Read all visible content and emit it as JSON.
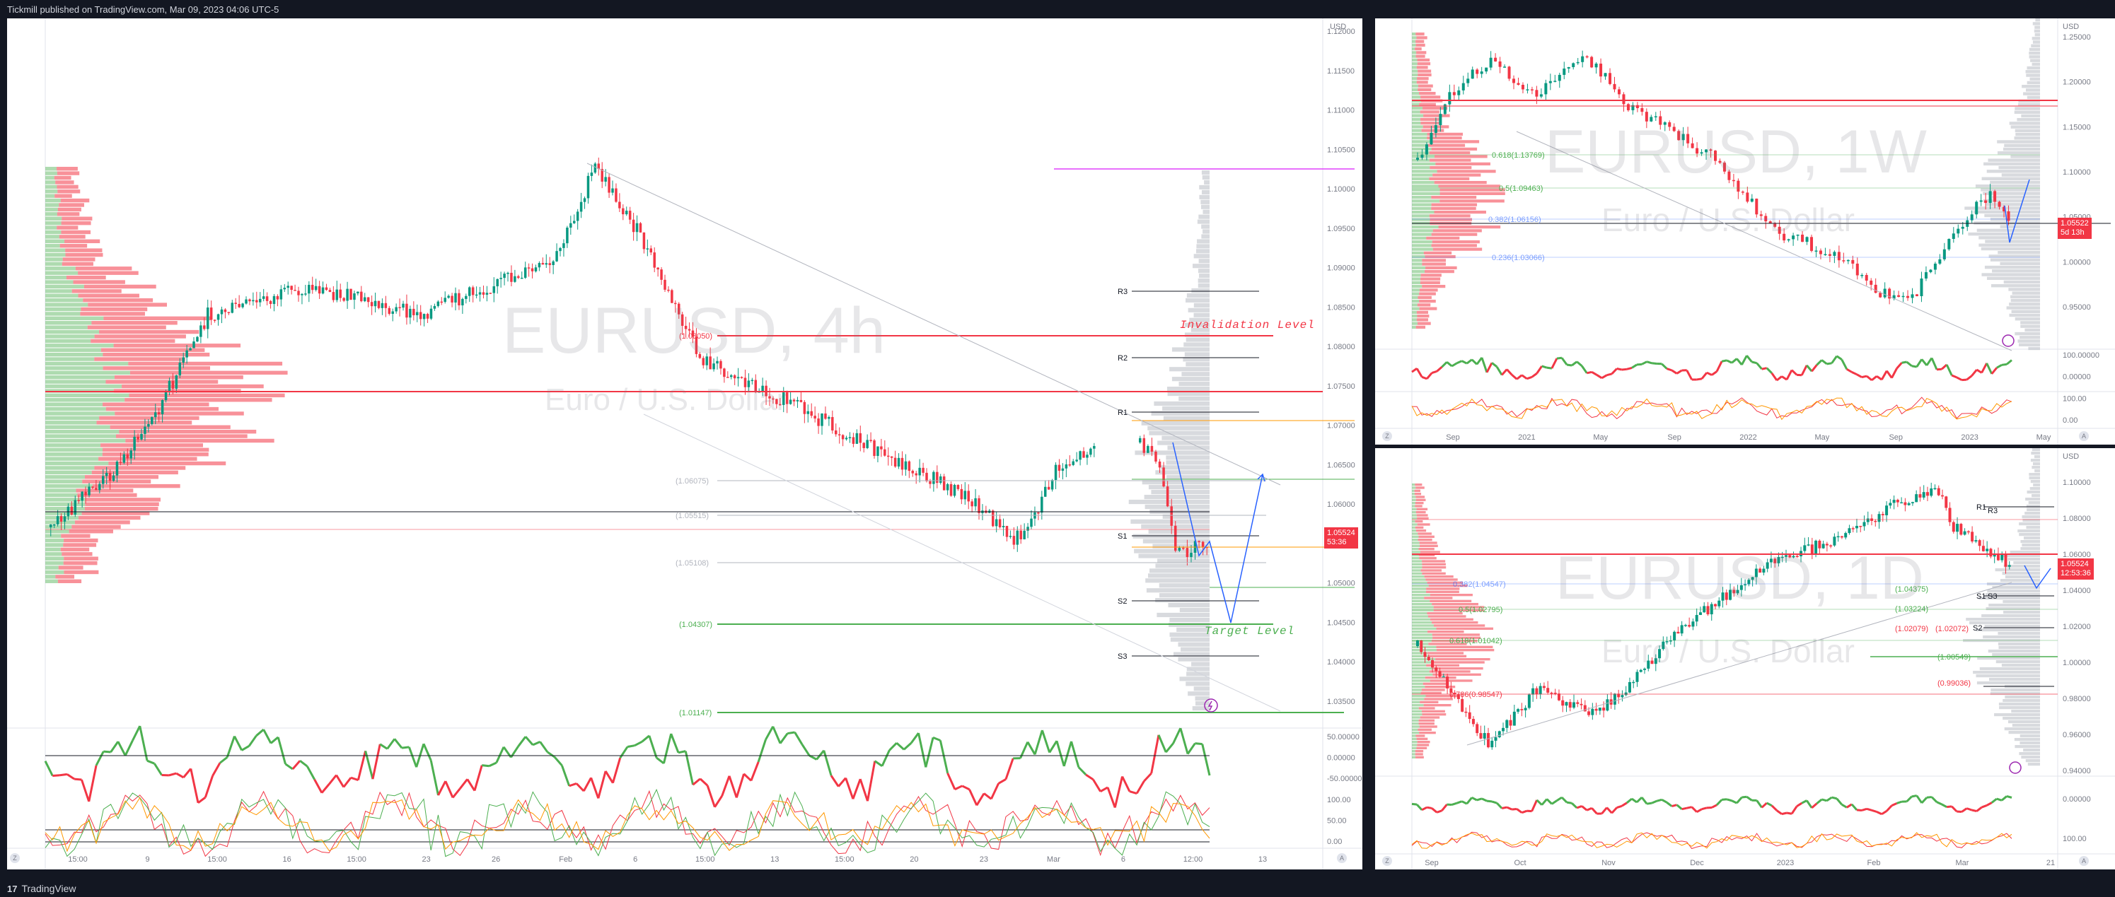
{
  "header": {
    "published": "Tickmill published on TradingView.com, Mar 09, 2023 04:06 UTC-5"
  },
  "footer": {
    "brand": "TradingView",
    "logo": "17"
  },
  "colors": {
    "bull": "#089981",
    "bear": "#f23645",
    "levelRed": "#f23645",
    "levelGreen": "#4caf50",
    "pivot": "#131722",
    "projection": "#2962ff"
  },
  "panels": {
    "h4": {
      "symbol": "EURUSD, 4h",
      "description": "Euro / U.S. Dollar",
      "currency": "USD",
      "price_tag": {
        "price": "1.05524",
        "countdown": "53:36"
      },
      "yticks": [
        "1.12000",
        "1.11500",
        "1.11000",
        "1.10500",
        "1.10000",
        "1.09500",
        "1.09000",
        "1.08500",
        "1.08000",
        "1.07500",
        "1.07000",
        "1.06500",
        "1.06000",
        "1.05500",
        "1.05000",
        "1.04500",
        "1.04000",
        "1.03500"
      ],
      "xticks": [
        "15:00",
        "9",
        "15:00",
        "16",
        "15:00",
        "23",
        "26",
        "Feb",
        "6",
        "15:00",
        "13",
        "15:00",
        "20",
        "23",
        "Mar",
        "6",
        "12:00",
        "13"
      ],
      "osc_ticks": [
        "50.00000",
        "0.00000",
        "-50.00000",
        "100.00",
        "50.00",
        "0.00"
      ],
      "levels": {
        "invalidation_value": "(1.08050)",
        "invalidation_label": "Invalidation Level",
        "target_value": "(1.04307)",
        "target_label": "Target Level",
        "bottom_value": "(1.01147)",
        "fib1": "(1.06075)",
        "fib2": "(1.05515)",
        "fib3": "(1.05108)",
        "r3": "R3",
        "r2": "R2",
        "r1": "R1",
        "s1": "S1",
        "s2": "S2",
        "s3": "S3"
      },
      "z": "Z",
      "a": "A"
    },
    "w1": {
      "symbol": "EURUSD, 1W",
      "description": "Euro / U.S. Dollar",
      "currency": "USD",
      "price_tag": {
        "price": "1.05522",
        "countdown": "5d 13h"
      },
      "yticks": [
        "1.25000",
        "1.20000",
        "1.15000",
        "1.10000",
        "1.05000",
        "1.00000",
        "0.95000"
      ],
      "osc_ticks": [
        "100.00000",
        "0.00000",
        "100.00",
        "0.00"
      ],
      "xticks": [
        "Sep",
        "2021",
        "May",
        "Sep",
        "2022",
        "May",
        "Sep",
        "2023",
        "May"
      ],
      "fibs": [
        "0.618(1.13769)",
        "0.5(1.09463)",
        "0.382(1.06156)",
        "0.236(1.03066)"
      ],
      "z": "Z",
      "a": "A"
    },
    "d1": {
      "symbol": "EURUSD, 1D",
      "description": "Euro / U.S. Dollar",
      "currency": "USD",
      "price_tag": {
        "price": "1.05524",
        "countdown": "12:53:36"
      },
      "yticks": [
        "1.10000",
        "1.08000",
        "1.06000",
        "1.04000",
        "1.02000",
        "1.00000",
        "0.98000",
        "0.96000",
        "0.94000"
      ],
      "osc_ticks": [
        "0.00000",
        "100.00"
      ],
      "xticks": [
        "Sep",
        "Oct",
        "Nov",
        "Dec",
        "2023",
        "Feb",
        "Mar",
        "21"
      ],
      "fibs": [
        "0.382(1.04547)",
        "0.5(1.02795)",
        "0.618(1.01042)",
        "0.786(0.98547)"
      ],
      "levels": [
        "(1.04375)",
        "(1.03224)",
        "(1.02079)",
        "(1.02072)",
        "(1.00549)",
        "(0.99036)"
      ],
      "pivots": [
        "R1",
        "R3",
        "S1",
        "S3",
        "S2"
      ],
      "z": "Z",
      "a": "A"
    }
  }
}
